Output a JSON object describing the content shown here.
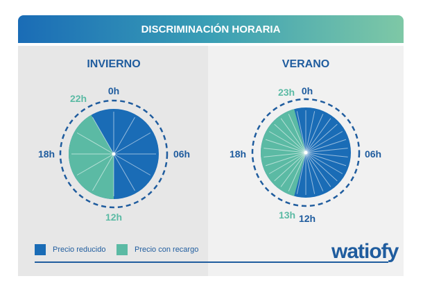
{
  "title": "DISCRIMINACIÓN HORARIA",
  "colors": {
    "reducido": "#1a6cb6",
    "recargo": "#5bbaa4",
    "dash": "#1f5c9e"
  },
  "winter": {
    "title": "INVIERNO",
    "labels": {
      "top": "0h",
      "right": "06h",
      "bottom": "12h",
      "left": "18h",
      "switch": "22h"
    },
    "recargo_from_hour": 12,
    "recargo_to_hour": 22
  },
  "summer": {
    "title": "VERANO",
    "labels": {
      "top": "0h",
      "right": "06h",
      "bottom": "12h",
      "left": "18h",
      "switch_top": "23h",
      "switch_bottom": "13h"
    },
    "recargo_from_hour": 13,
    "recargo_to_hour": 23
  },
  "legend": {
    "reducido": "Precio reducido",
    "recargo": "Precio con recargo"
  },
  "logo": "watiofy"
}
